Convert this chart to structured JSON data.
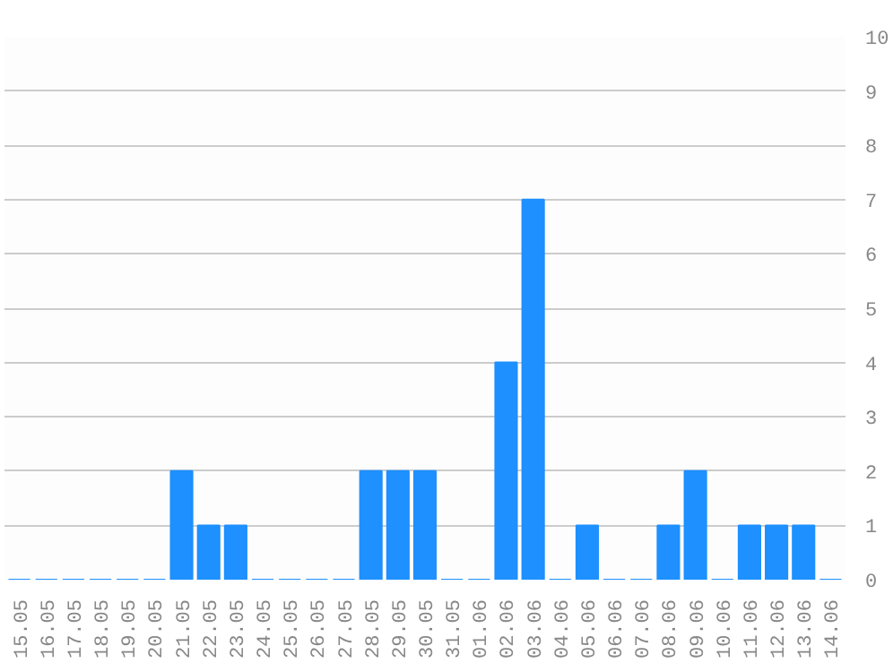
{
  "chart_data": {
    "type": "bar",
    "categories": [
      "15.05",
      "16.05",
      "17.05",
      "18.05",
      "19.05",
      "20.05",
      "21.05",
      "22.05",
      "23.05",
      "24.05",
      "25.05",
      "26.05",
      "27.05",
      "28.05",
      "29.05",
      "30.05",
      "31.05",
      "01.06",
      "02.06",
      "03.06",
      "04.06",
      "05.06",
      "06.06",
      "07.06",
      "08.06",
      "09.06",
      "10.06",
      "11.06",
      "12.06",
      "13.06",
      "14.06"
    ],
    "values": [
      0,
      0,
      0,
      0,
      0,
      0,
      2,
      1,
      1,
      0,
      0,
      0,
      0,
      2,
      2,
      2,
      0,
      0,
      4,
      7,
      0,
      1,
      0,
      0,
      1,
      2,
      0,
      1,
      1,
      1,
      0
    ],
    "color": "#1e90ff",
    "ylim": [
      0,
      10
    ],
    "yticks": [
      0,
      1,
      2,
      3,
      4,
      5,
      6,
      7,
      8,
      9,
      10
    ],
    "grid": "y"
  }
}
